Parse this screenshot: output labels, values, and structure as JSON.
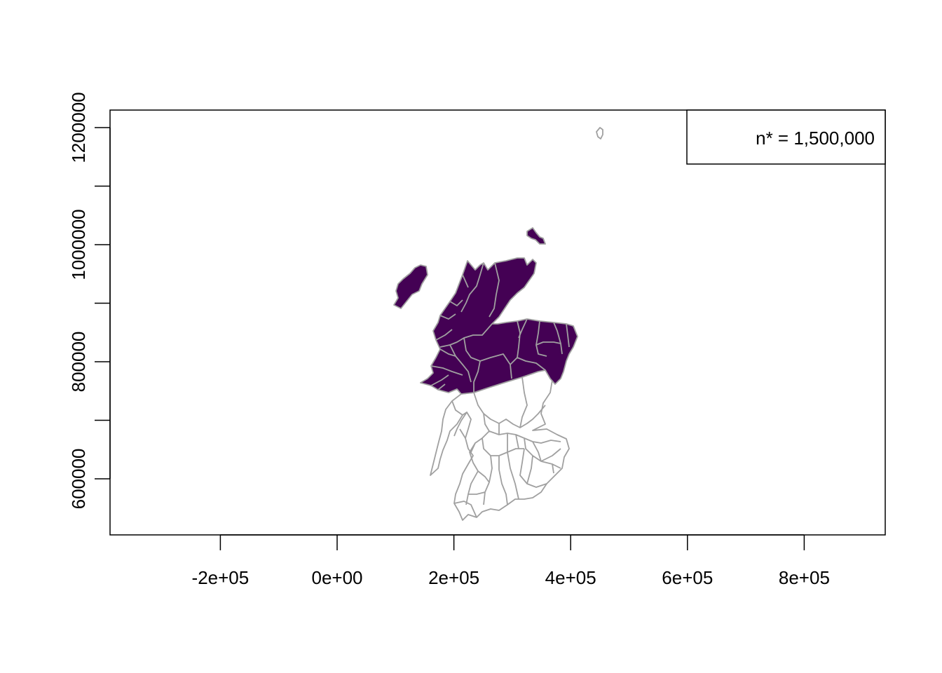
{
  "colors": {
    "selected_fill": "#440154",
    "unselected_fill": "#ffffff",
    "boundary": "#a0a0a0",
    "axis": "#000000"
  },
  "legend": {
    "text": "n* = 1,500,000",
    "position": "top-right"
  },
  "chart_data": {
    "type": "choropleth-map",
    "x_axis": {
      "ticks": [
        -200000,
        0,
        200000,
        400000,
        600000,
        800000
      ],
      "tick_labels": [
        "-2e+05",
        "0e+00",
        "2e+05",
        "4e+05",
        "6e+05",
        "8e+05"
      ]
    },
    "y_axis": {
      "ticks": [
        600000,
        800000,
        1000000,
        1200000
      ],
      "tick_labels": [
        "600000",
        "800000",
        "1000000",
        "1200000"
      ],
      "minor_ticks": [
        700000,
        900000,
        1100000
      ]
    },
    "regions": [
      {
        "group": "selected",
        "count": 13
      },
      {
        "group": "unselected",
        "count": 40
      }
    ]
  }
}
